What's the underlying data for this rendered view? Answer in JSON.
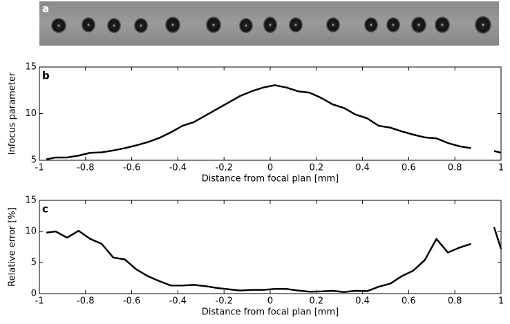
{
  "panel_a": {
    "label": "a"
  },
  "chart_data": [
    {
      "type": "line",
      "panel_label": "b",
      "x_label": "Distance from focal plan [mm]",
      "y_label": "Infocus parameter",
      "xlim": [
        -1,
        1
      ],
      "ylim": [
        5,
        15
      ],
      "xticks": [
        -1,
        -0.8,
        -0.6,
        -0.4,
        -0.2,
        0,
        0.2,
        0.4,
        0.6,
        0.8,
        1
      ],
      "yticks": [
        5,
        10,
        15
      ],
      "x": [
        -0.97,
        -0.93,
        -0.88,
        -0.83,
        -0.78,
        -0.73,
        -0.68,
        -0.63,
        -0.58,
        -0.53,
        -0.48,
        -0.43,
        -0.38,
        -0.33,
        -0.28,
        -0.23,
        -0.18,
        -0.13,
        -0.08,
        -0.03,
        0.02,
        0.07,
        0.12,
        0.17,
        0.22,
        0.27,
        0.32,
        0.37,
        0.42,
        0.47,
        0.52,
        0.57,
        0.62,
        0.67,
        0.72,
        0.77,
        0.82,
        0.87,
        0.92,
        0.97,
        1.0
      ],
      "series": [
        {
          "color": "#000000",
          "values": [
            5.1,
            5.3,
            5.3,
            5.5,
            5.8,
            5.85,
            6.05,
            6.3,
            6.6,
            6.95,
            7.4,
            8.0,
            8.7,
            9.1,
            9.8,
            10.5,
            11.2,
            11.9,
            12.4,
            12.8,
            13.05,
            12.8,
            12.4,
            12.25,
            11.7,
            11.0,
            10.6,
            9.9,
            9.5,
            8.7,
            8.5,
            8.1,
            7.75,
            7.45,
            7.35,
            6.85,
            6.5,
            6.3,
            null,
            6.0,
            5.8
          ]
        }
      ]
    },
    {
      "type": "line",
      "panel_label": "c",
      "x_label": "Distance from focal plan [mm]",
      "y_label": "Relative error [%]",
      "xlim": [
        -1,
        1
      ],
      "ylim": [
        0,
        15
      ],
      "xticks": [
        -1,
        -0.8,
        -0.6,
        -0.4,
        -0.2,
        0,
        0.2,
        0.4,
        0.6,
        0.8,
        1
      ],
      "yticks": [
        0,
        5,
        10,
        15
      ],
      "x": [
        -0.97,
        -0.93,
        -0.88,
        -0.83,
        -0.78,
        -0.73,
        -0.68,
        -0.63,
        -0.58,
        -0.53,
        -0.48,
        -0.43,
        -0.38,
        -0.33,
        -0.28,
        -0.23,
        -0.18,
        -0.13,
        -0.08,
        -0.03,
        0.02,
        0.07,
        0.12,
        0.17,
        0.22,
        0.27,
        0.32,
        0.37,
        0.42,
        0.47,
        0.52,
        0.57,
        0.62,
        0.67,
        0.72,
        0.77,
        0.82,
        0.87,
        0.92,
        0.97,
        1.0
      ],
      "series": [
        {
          "color": "#000000",
          "values": [
            9.8,
            10.0,
            9.0,
            10.1,
            8.8,
            8.0,
            5.8,
            5.5,
            3.9,
            2.8,
            2.0,
            1.3,
            1.3,
            1.4,
            1.2,
            0.9,
            0.7,
            0.5,
            0.6,
            0.6,
            0.75,
            0.75,
            0.5,
            0.3,
            0.35,
            0.45,
            0.25,
            0.45,
            0.4,
            1.1,
            1.6,
            2.8,
            3.7,
            5.4,
            8.8,
            6.6,
            7.4,
            8.0,
            null,
            10.7,
            7.2
          ]
        }
      ]
    }
  ]
}
